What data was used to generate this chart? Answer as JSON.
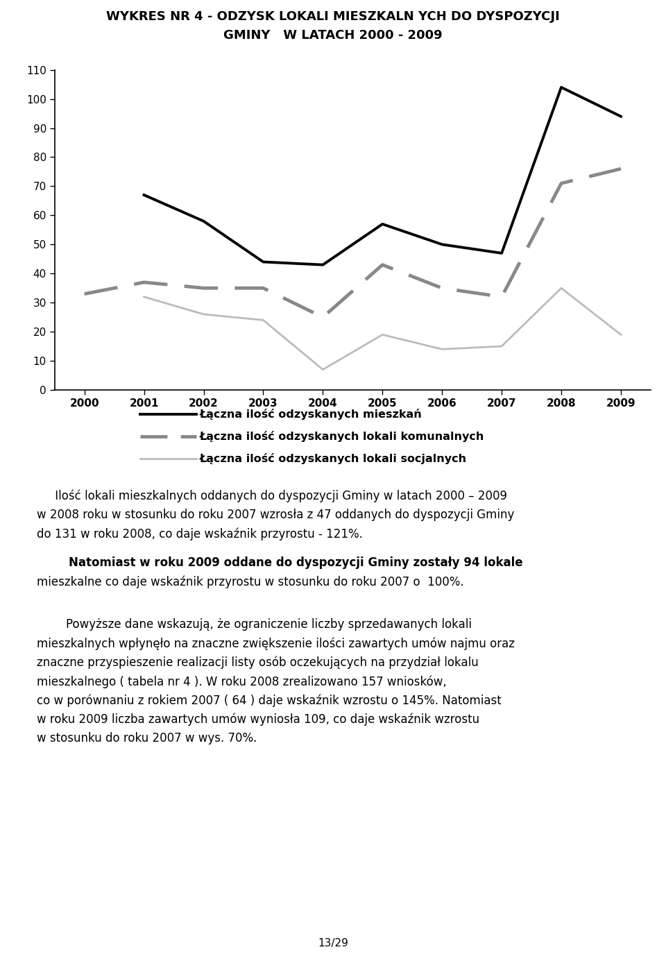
{
  "title_line1": "WYKRES NR 4 - ODZYSK LOKALI MIESZKALN YCH DO DYSPOZYCJI",
  "title_line2": "GMINY   W LATACH 2000 - 2009",
  "years": [
    2000,
    2001,
    2002,
    2003,
    2004,
    2005,
    2006,
    2007,
    2008,
    2009
  ],
  "series_mieszkan": {
    "name": "Łączna ilość odzyskanych mieszkań",
    "values": [
      67,
      58,
      44,
      43,
      57,
      50,
      47,
      104,
      94
    ],
    "years": [
      2001,
      2002,
      2003,
      2004,
      2005,
      2006,
      2007,
      2008,
      2009
    ],
    "color": "#000000",
    "linewidth": 2.8
  },
  "series_komunalnych": {
    "name": "Łączna ilość odzyskanych lokali komunalnych",
    "values": [
      33,
      37,
      35,
      35,
      25,
      43,
      35,
      32,
      71,
      76
    ],
    "years": [
      2000,
      2001,
      2002,
      2003,
      2004,
      2005,
      2006,
      2007,
      2008,
      2009
    ],
    "color": "#888888",
    "linewidth": 3.5,
    "dashes": [
      10,
      5
    ]
  },
  "series_socjalnych": {
    "name": "Łączna ilość odzyskanych lokali socjalnych",
    "values": [
      32,
      26,
      24,
      7,
      19,
      14,
      15,
      35,
      19
    ],
    "years": [
      2001,
      2002,
      2003,
      2004,
      2005,
      2006,
      2007,
      2008,
      2009
    ],
    "color": "#bbbbbb",
    "linewidth": 2.0
  },
  "ylim": [
    0,
    110
  ],
  "yticks": [
    0,
    10,
    20,
    30,
    40,
    50,
    60,
    70,
    80,
    90,
    100,
    110
  ],
  "background_color": "#ffffff",
  "text_color": "#000000",
  "page_number": "13/29"
}
